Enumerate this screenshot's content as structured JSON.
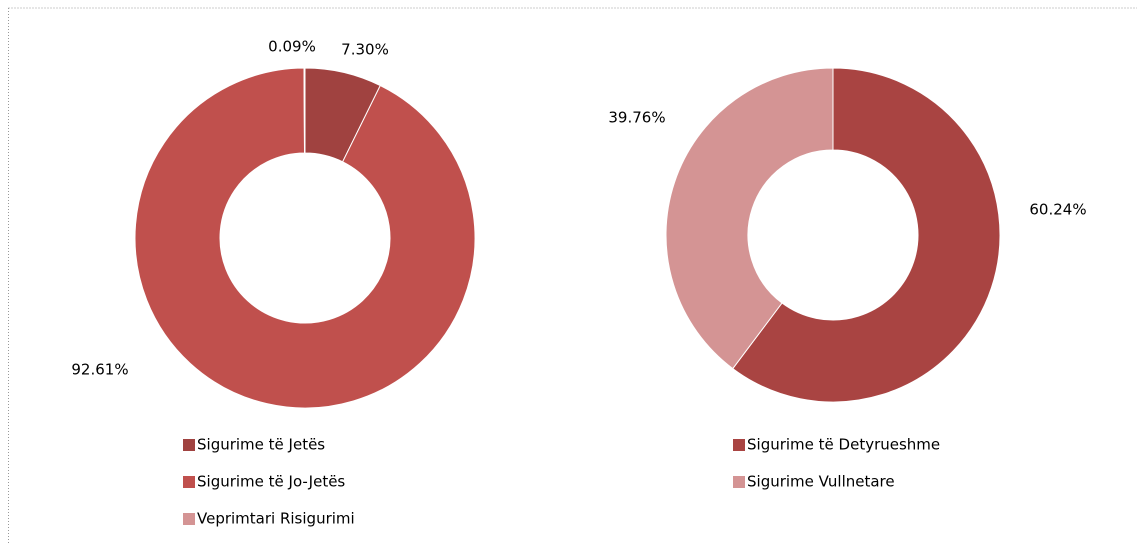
{
  "chart_data": [
    {
      "type": "donut",
      "categories": [
        "Sigurime të Jetës",
        "Sigurime të Jo-Jetës",
        "Veprimtari Risigurimi"
      ],
      "values": [
        7.3,
        92.61,
        0.09
      ],
      "value_labels": [
        "7.30%",
        "92.61%",
        "0.09%"
      ],
      "colors": [
        "#a04240",
        "#c0504d",
        "#d49494"
      ]
    },
    {
      "type": "donut",
      "categories": [
        "Sigurime të Detyrueshme",
        "Sigurime Vullnetare"
      ],
      "values": [
        60.24,
        39.76
      ],
      "value_labels": [
        "60.24%",
        "39.76%"
      ],
      "colors": [
        "#a94442",
        "#d49494"
      ]
    }
  ]
}
